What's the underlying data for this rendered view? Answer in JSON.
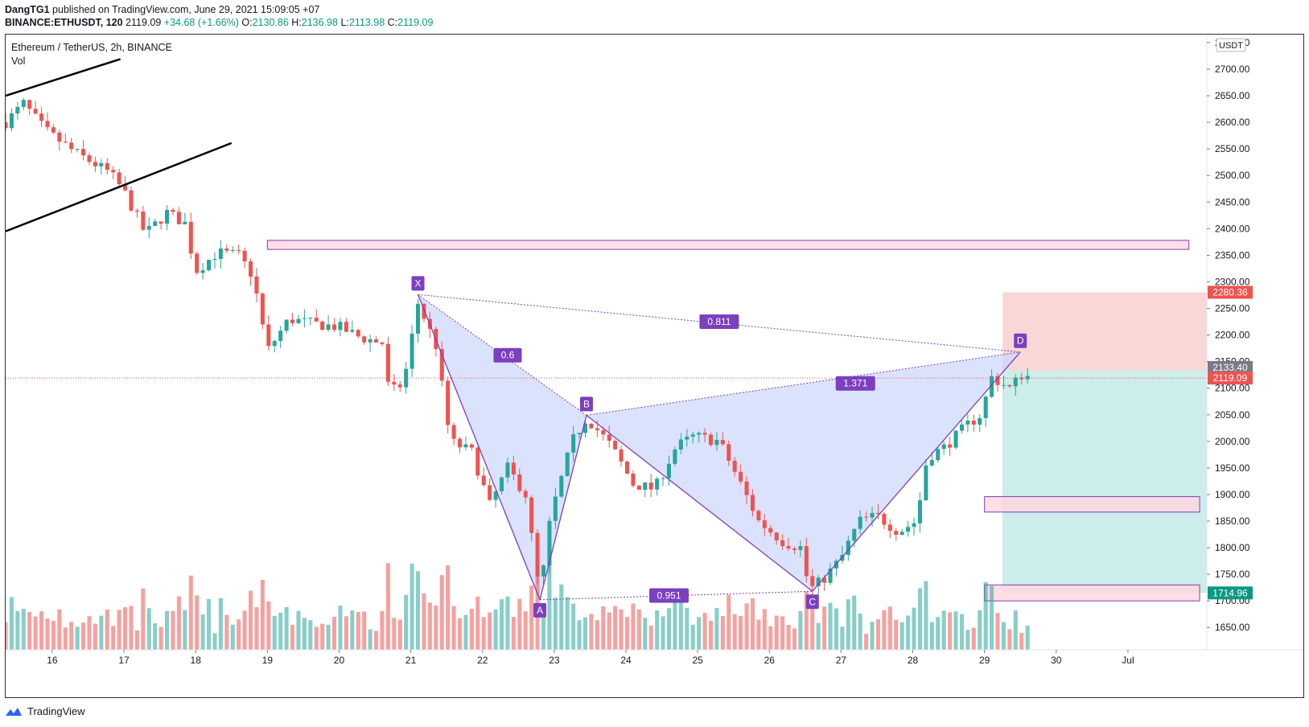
{
  "header": {
    "author": "DangTG1",
    "published_text": "published on TradingView.com, June 29, 2021 15:09:05 +07",
    "symbol": "BINANCE:ETHUSDT, 120",
    "last": "2119.09",
    "change": "+34.68 (+1.66%)",
    "open_label": "O:",
    "open": "2130.86",
    "high_label": "H:",
    "high": "2136.98",
    "low_label": "L:",
    "low": "2113.98",
    "close_label": "C:",
    "close": "2119.09"
  },
  "legend": {
    "title": "Ethereum / TetherUS, 2h, BINANCE",
    "indicator": "Vol"
  },
  "footer": {
    "brand": "TradingView"
  },
  "colors": {
    "up": "#26a69a",
    "down": "#ef5350",
    "pattern": "#7b3fbf",
    "pattern_fill": "#cfd9fb",
    "zone": "#ffd6de",
    "stop": "#f8c9c9",
    "target": "#c6ebe7"
  },
  "chart_data": {
    "type": "candlestick",
    "price_unit": "USDT",
    "x_ticks": [
      "16",
      "17",
      "18",
      "19",
      "20",
      "21",
      "22",
      "23",
      "24",
      "25",
      "26",
      "27",
      "28",
      "29",
      "30",
      "Jul"
    ],
    "x_tick_days": [
      16,
      17,
      18,
      19,
      20,
      21,
      22,
      23,
      24,
      25,
      26,
      27,
      28,
      29,
      30,
      31
    ],
    "y_ticks": [
      "1650.00",
      "1700.00",
      "1750.00",
      "1800.00",
      "1850.00",
      "1900.00",
      "1950.00",
      "2000.00",
      "2050.00",
      "2100.00",
      "2150.00",
      "2200.00",
      "2250.00",
      "2300.00",
      "2350.00",
      "2400.00",
      "2450.00",
      "2500.00",
      "2550.00",
      "2600.00",
      "2650.00",
      "2700.00",
      "2750.00"
    ],
    "y_range": [
      1608,
      2765
    ],
    "x_range_days": [
      15.35,
      32.1
    ],
    "price_waypoints": [
      [
        15.35,
        2600
      ],
      [
        15.6,
        2635
      ],
      [
        15.9,
        2585
      ],
      [
        16.3,
        2545
      ],
      [
        16.8,
        2505
      ],
      [
        17.0,
        2470
      ],
      [
        17.3,
        2390
      ],
      [
        17.6,
        2430
      ],
      [
        17.85,
        2410
      ],
      [
        18.0,
        2320
      ],
      [
        18.3,
        2355
      ],
      [
        18.6,
        2350
      ],
      [
        18.8,
        2310
      ],
      [
        19.0,
        2170
      ],
      [
        19.3,
        2230
      ],
      [
        19.7,
        2220
      ],
      [
        20.0,
        2215
      ],
      [
        20.3,
        2195
      ],
      [
        20.6,
        2185
      ],
      [
        20.7,
        2090
      ],
      [
        20.9,
        2110
      ],
      [
        21.1,
        2260
      ],
      [
        21.35,
        2180
      ],
      [
        21.55,
        2000
      ],
      [
        21.85,
        1980
      ],
      [
        22.1,
        1880
      ],
      [
        22.35,
        1950
      ],
      [
        22.6,
        1900
      ],
      [
        22.8,
        1710
      ],
      [
        22.95,
        1860
      ],
      [
        23.25,
        2000
      ],
      [
        23.45,
        2045
      ],
      [
        23.8,
        1990
      ],
      [
        24.1,
        1920
      ],
      [
        24.4,
        1910
      ],
      [
        24.7,
        1990
      ],
      [
        24.95,
        2010
      ],
      [
        25.3,
        2000
      ],
      [
        25.6,
        1920
      ],
      [
        25.85,
        1850
      ],
      [
        26.2,
        1810
      ],
      [
        26.45,
        1800
      ],
      [
        26.55,
        1720
      ],
      [
        26.75,
        1740
      ],
      [
        27.0,
        1780
      ],
      [
        27.25,
        1850
      ],
      [
        27.5,
        1860
      ],
      [
        27.8,
        1830
      ],
      [
        28.05,
        1850
      ],
      [
        28.2,
        1970
      ],
      [
        28.45,
        1990
      ],
      [
        28.75,
        2030
      ],
      [
        28.95,
        2050
      ],
      [
        29.1,
        2120
      ],
      [
        29.35,
        2100
      ],
      [
        29.55,
        2130
      ],
      [
        29.62,
        2119
      ]
    ],
    "horizontal_zones": [
      {
        "from_day": 19.0,
        "to_day": 31.85,
        "low": 2361,
        "high": 2378
      },
      {
        "from_day": 29.0,
        "to_day": 32.0,
        "low": 1867,
        "high": 1896
      },
      {
        "from_day": 29.0,
        "to_day": 32.0,
        "low": 1700,
        "high": 1730
      }
    ],
    "trend_lines": [
      {
        "from": [
          15.35,
          2650
        ],
        "to": [
          16.95,
          2719
        ]
      },
      {
        "from": [
          15.35,
          2395
        ],
        "to": [
          18.5,
          2561
        ]
      }
    ],
    "pattern": {
      "name": "XABCD",
      "points": [
        {
          "label": "X",
          "day": 21.1,
          "price": 2276
        },
        {
          "label": "A",
          "day": 22.8,
          "price": 1702
        },
        {
          "label": "B",
          "day": 23.45,
          "price": 2049
        },
        {
          "label": "C",
          "day": 26.6,
          "price": 1718
        },
        {
          "label": "D",
          "day": 29.5,
          "price": 2168
        }
      ],
      "ratios": [
        {
          "value": "0.6",
          "day": 22.35,
          "price": 2162
        },
        {
          "value": "0.811",
          "day": 25.3,
          "price": 2225
        },
        {
          "value": "1.371",
          "day": 27.2,
          "price": 2109
        },
        {
          "value": "0.951",
          "day": 24.6,
          "price": 1710
        }
      ]
    },
    "position": {
      "from_day": 29.25,
      "to_day": 32.1,
      "entry": 2133.4,
      "stop": 2280.36,
      "target": 1714.96
    },
    "price_labels": [
      {
        "value": "2280.36",
        "price": 2280.36,
        "color": "#ef5350"
      },
      {
        "value": "2133.40",
        "price": 2139,
        "color": "#787b86"
      },
      {
        "value": "2119.09",
        "price": 2119.09,
        "color": "#ef5350"
      },
      {
        "value": "1714.96",
        "price": 1714.96,
        "color": "#089981"
      }
    ],
    "current_price": 2119.09
  }
}
